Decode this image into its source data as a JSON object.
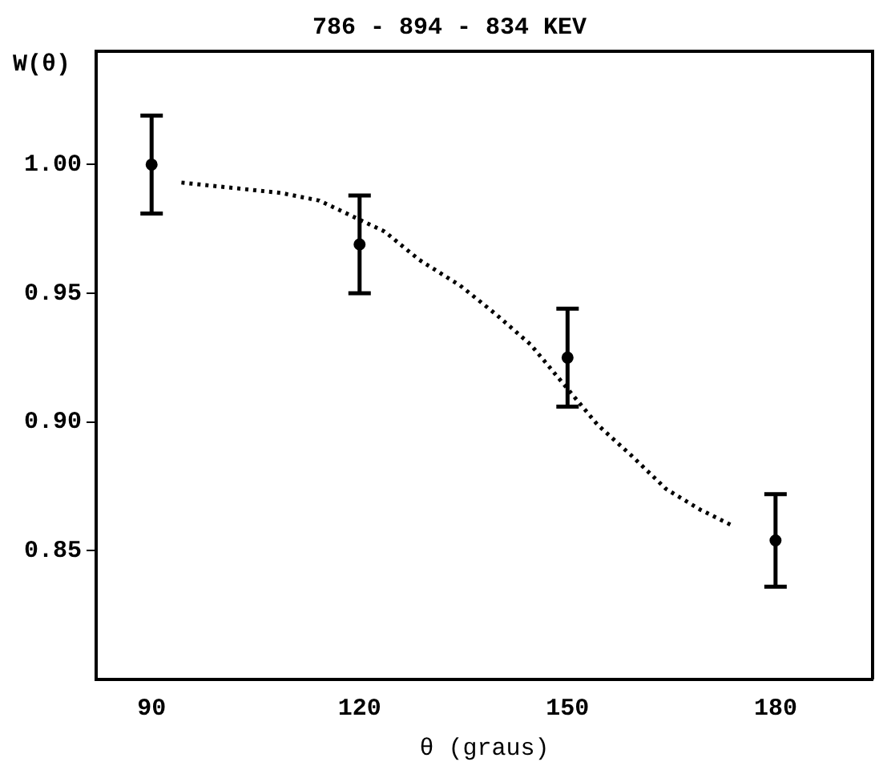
{
  "chart_data": {
    "type": "scatter",
    "title": "786 - 894 - 834 KEV",
    "xlabel": "θ (graus)",
    "ylabel": "W(θ)",
    "xlim": [
      82,
      194
    ],
    "ylim": [
      0.8,
      1.044
    ],
    "xticks": [
      90,
      120,
      150,
      180
    ],
    "yticks": [
      {
        "value": 0.85,
        "label": "0.85"
      },
      {
        "value": 0.9,
        "label": "0.90"
      },
      {
        "value": 0.95,
        "label": "0.95"
      },
      {
        "value": 1.0,
        "label": "1.00"
      }
    ],
    "grid": false,
    "legend": false,
    "series": [
      {
        "color": "#000000",
        "marker": "circle",
        "x": [
          90,
          120,
          150,
          180
        ],
        "values": [
          1.0,
          0.969,
          0.925,
          0.854
        ],
        "errors": [
          0.019,
          0.019,
          0.019,
          0.018
        ]
      },
      {
        "type": "line",
        "color": "#000000",
        "marker": "none",
        "line_style": "dotted",
        "x": [
          94.3,
          108.6,
          114.2,
          123.6,
          128.6,
          134.5,
          139.6,
          144.7,
          154.3,
          159.2,
          164.2,
          169.1,
          173.6
        ],
        "values": [
          0.993,
          0.989,
          0.986,
          0.974,
          0.963,
          0.953,
          0.942,
          0.93,
          0.899,
          0.887,
          0.874,
          0.866,
          0.86
        ]
      }
    ]
  }
}
